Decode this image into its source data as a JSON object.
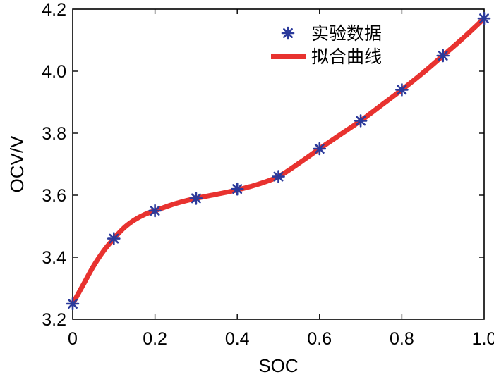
{
  "chart_data": {
    "type": "line",
    "xlabel": "SOC",
    "ylabel": "OCV/V",
    "xlim": [
      0,
      1.0
    ],
    "ylim": [
      3.2,
      4.2
    ],
    "x_ticks": [
      "0",
      "0.2",
      "0.4",
      "0.6",
      "0.8",
      "1.0"
    ],
    "y_ticks": [
      "3.2",
      "3.4",
      "3.6",
      "3.8",
      "4.0",
      "4.2"
    ],
    "legend_position": "top-right",
    "grid": false,
    "series": [
      {
        "name": "实验数据",
        "kind": "scatter",
        "marker": "asterisk",
        "color": "#2b3a9b",
        "x": [
          0,
          0.1,
          0.2,
          0.3,
          0.4,
          0.5,
          0.6,
          0.7,
          0.8,
          0.9,
          1.0
        ],
        "y": [
          3.25,
          3.46,
          3.55,
          3.59,
          3.62,
          3.66,
          3.75,
          3.84,
          3.94,
          4.05,
          4.17
        ]
      },
      {
        "name": "拟合曲线",
        "kind": "line",
        "color": "#e8322f",
        "x": [
          0,
          0.025,
          0.05,
          0.075,
          0.1,
          0.125,
          0.15,
          0.175,
          0.2,
          0.25,
          0.3,
          0.35,
          0.4,
          0.45,
          0.5,
          0.55,
          0.6,
          0.65,
          0.7,
          0.75,
          0.8,
          0.85,
          0.9,
          0.95,
          1.0
        ],
        "y": [
          3.25,
          3.31,
          3.37,
          3.42,
          3.46,
          3.495,
          3.52,
          3.538,
          3.55,
          3.573,
          3.59,
          3.603,
          3.617,
          3.635,
          3.66,
          3.703,
          3.75,
          3.795,
          3.84,
          3.89,
          3.94,
          3.993,
          4.05,
          4.108,
          4.17
        ]
      }
    ]
  }
}
